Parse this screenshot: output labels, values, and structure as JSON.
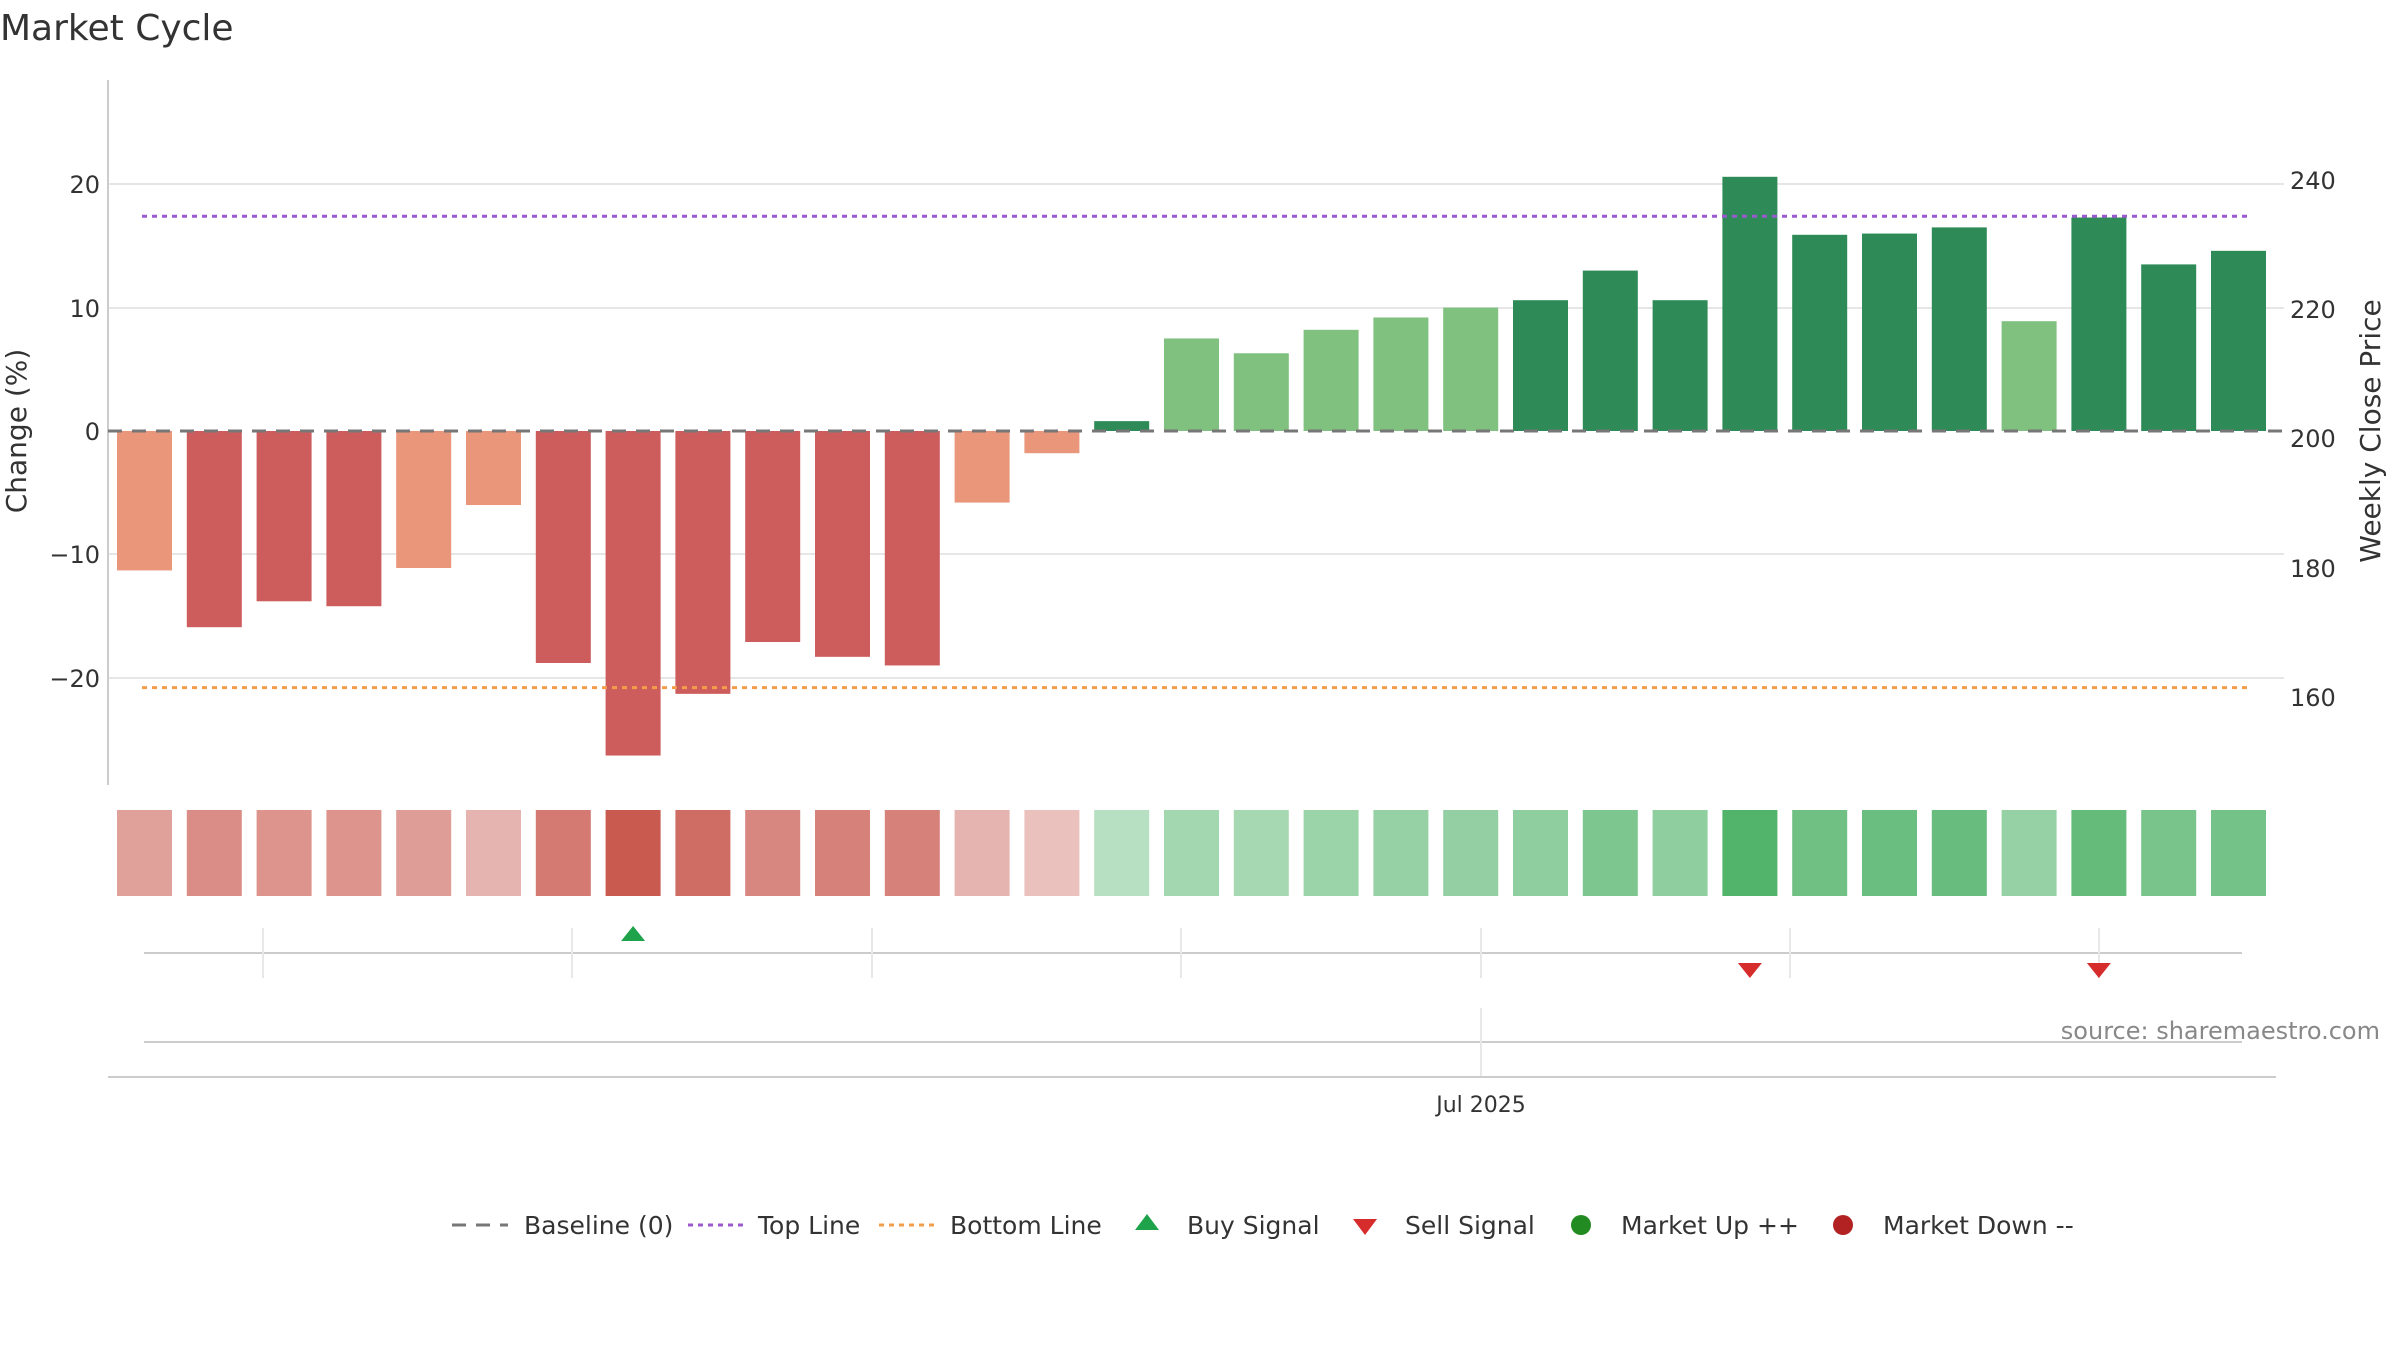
{
  "chart_data": {
    "type": "bar",
    "title": "Market Cycle",
    "source": "source: sharemaestro.com",
    "left_axis": {
      "label": "Change (%)",
      "ticks": [
        20,
        10,
        0,
        -10,
        -20
      ],
      "tick_labels": [
        "20",
        "10",
        "0",
        "−10",
        "−20"
      ],
      "range": [
        -28.5,
        28.5
      ]
    },
    "right_axis": {
      "label": "Weekly Close Price",
      "ticks": [
        240,
        220,
        200,
        180,
        160
      ],
      "tick_labels": [
        "240",
        "220",
        "200",
        "180",
        "160"
      ]
    },
    "x_axis": {
      "tick_labels": [
        "Jul 2025"
      ]
    },
    "top_line": 17.4,
    "bottom_line": -20.8,
    "values": [
      -11.3,
      -15.9,
      -13.8,
      -14.2,
      -11.1,
      -6.0,
      -18.8,
      -26.3,
      -21.3,
      -17.1,
      -18.3,
      -19.0,
      -5.8,
      -1.8,
      0.8,
      7.5,
      6.3,
      8.2,
      9.2,
      10.0,
      10.6,
      13.0,
      10.6,
      20.6,
      15.9,
      16.0,
      16.5,
      8.9,
      17.3,
      13.5,
      14.6
    ],
    "strength": [
      0.45,
      0.6,
      0.55,
      0.55,
      0.48,
      0.3,
      0.75,
      1.0,
      0.85,
      0.65,
      0.7,
      0.7,
      0.3,
      0.2,
      0.25,
      0.4,
      0.38,
      0.45,
      0.5,
      0.52,
      0.55,
      0.68,
      0.55,
      1.0,
      0.78,
      0.82,
      0.84,
      0.5,
      0.86,
      0.72,
      0.74
    ],
    "colors": {
      "down_strong": "#cd5c5c",
      "down_weak": "#e9967a",
      "up_strong": "#2e8b57",
      "up_weak": "#80c17f",
      "heat_down": "#c95a50",
      "heat_up": "#52b36a",
      "top_line": "#9b59d0",
      "bottom_line": "#f39c4a",
      "buy": "#1fa34a",
      "sell": "#d62c2c",
      "market_up": "#228b22",
      "market_down": "#b22222"
    },
    "signals": [
      {
        "type": "buy",
        "index": 7
      },
      {
        "type": "sell",
        "index": 23
      },
      {
        "type": "sell",
        "index": 28
      }
    ],
    "legend": [
      {
        "label": "Baseline (0)",
        "icon": "dash-gray-line"
      },
      {
        "label": "Top Line",
        "icon": "dotted-purple-line"
      },
      {
        "label": "Bottom Line",
        "icon": "dotted-orange-line"
      },
      {
        "label": "Buy Signal",
        "icon": "triangle-up-green"
      },
      {
        "label": "Sell Signal",
        "icon": "triangle-down-red"
      },
      {
        "label": "Market Up ++",
        "icon": "dot-green"
      },
      {
        "label": "Market Down --",
        "icon": "dot-red"
      }
    ]
  }
}
